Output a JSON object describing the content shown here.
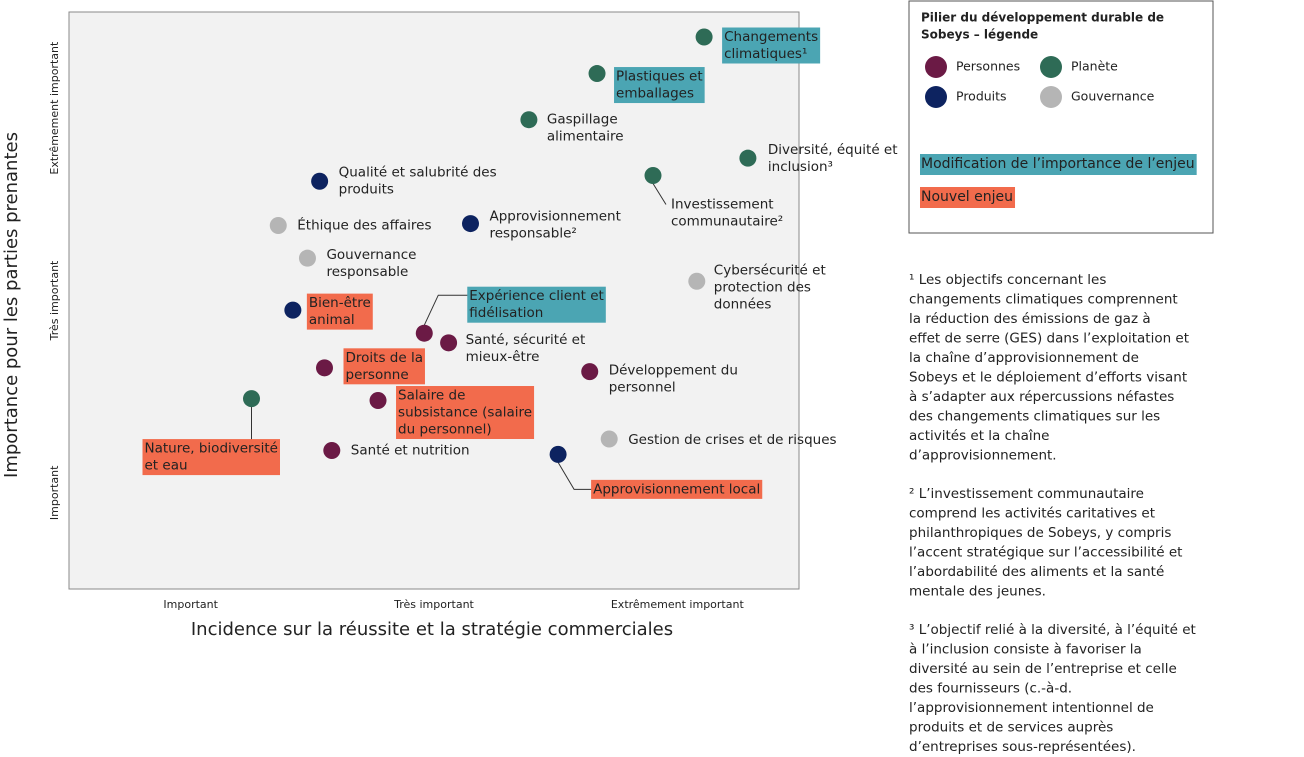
{
  "chart_data": {
    "type": "scatter",
    "x_label": "Incidence sur la réussite et la stratégie commerciales",
    "y_label": "Importance pour les parties prenantes",
    "xlim": [
      0,
      3
    ],
    "ylim": [
      0,
      3
    ],
    "xticks": [
      {
        "value": 0.5,
        "label": "Important"
      },
      {
        "value": 1.5,
        "label": "Très important"
      },
      {
        "value": 2.5,
        "label": "Extrêmement important"
      }
    ],
    "yticks": [
      {
        "value": 0.5,
        "label": "Important"
      },
      {
        "value": 1.5,
        "label": "Très important"
      },
      {
        "value": 2.5,
        "label": "Extrêmement important"
      }
    ],
    "legend_title": [
      "Pilier du développement durable de",
      "Sobeys – légende"
    ],
    "highlights": [
      {
        "label": "Modification de l’importance de l’enjeu",
        "color": "#4ba5b3"
      },
      {
        "label": "Nouvel enjeu",
        "color": "#f26b4c"
      }
    ],
    "series": [
      {
        "name": "Personnes",
        "color": "#6b1a45",
        "x": [
          1.46,
          1.56,
          1.05,
          2.14,
          1.27,
          1.08
        ],
        "values": [
          1.33,
          1.28,
          1.15,
          1.13,
          0.98,
          0.72
        ],
        "labels": [
          [
            "Expérience client et",
            "fidélisation"
          ],
          [
            "Santé, sécurité et",
            "mieux-être"
          ],
          [
            "Droits de la",
            "personne"
          ],
          [
            "Développement du",
            "personnel"
          ],
          [
            "Salaire de",
            "subsistance (salaire",
            "du personnel)"
          ],
          [
            "Santé et nutrition"
          ]
        ],
        "highlight": [
          "#4ba5b3",
          null,
          "#f26b4c",
          null,
          "#f26b4c",
          null
        ]
      },
      {
        "name": "Planète",
        "color": "#2e6b56",
        "x": [
          2.61,
          2.17,
          1.89,
          2.79,
          2.4,
          0.75
        ],
        "values": [
          2.87,
          2.68,
          2.44,
          2.24,
          2.15,
          0.99
        ],
        "labels": [
          [
            "Changements",
            "climatiques¹"
          ],
          [
            "Plastiques et",
            "emballages"
          ],
          [
            "Gaspillage",
            "alimentaire"
          ],
          [
            "Diversité, équité et",
            "inclusion³"
          ],
          [
            "Investissement",
            "communautaire²"
          ],
          [
            "Nature, biodiversité",
            "et eau"
          ]
        ],
        "highlight": [
          "#4ba5b3",
          "#4ba5b3",
          null,
          null,
          null,
          "#f26b4c"
        ]
      },
      {
        "name": "Produits",
        "color": "#0d2360",
        "x": [
          1.03,
          1.65,
          0.92,
          2.01
        ],
        "values": [
          2.12,
          1.9,
          1.45,
          0.7
        ],
        "labels": [
          [
            "Qualité et salubrité des",
            "produits"
          ],
          [
            "Approvisionnement",
            "responsable²"
          ],
          [
            "Bien-être",
            "animal"
          ],
          [
            "Approvisionnement local"
          ]
        ],
        "highlight": [
          null,
          null,
          "#f26b4c",
          "#f26b4c"
        ]
      },
      {
        "name": "Gouvernance",
        "color": "#b5b5b5",
        "x": [
          0.86,
          0.98,
          2.58,
          2.22
        ],
        "values": [
          1.89,
          1.72,
          1.6,
          0.78
        ],
        "labels": [
          [
            "Éthique des affaires"
          ],
          [
            "Gouvernance",
            "responsable"
          ],
          [
            "Cybersécurité et",
            "protection des",
            "données"
          ],
          [
            "Gestion de crises et de risques"
          ]
        ],
        "highlight": [
          null,
          null,
          null,
          null
        ]
      }
    ]
  },
  "footnotes": [
    [
      "¹ Les objectifs concernant les",
      "changements climatiques comprennent",
      "la réduction des émissions de gaz à",
      "effet de serre (GES) dans l’exploitation et",
      "la chaîne d’approvisionnement de",
      "Sobeys et le déploiement d’efforts visant",
      "à s’adapter aux répercussions néfastes",
      "des changements climatiques sur les",
      "activités et la chaîne",
      "d’approvisionnement."
    ],
    [
      "² L’investissement communautaire",
      "comprend les activités caritatives et",
      "philanthropiques de Sobeys, y compris",
      "l’accent stratégique sur l’accessibilité et",
      "l’abordabilité des aliments et la santé",
      "mentale des jeunes."
    ],
    [
      "³ L’objectif relié à la diversité, à l’équité et",
      "à l’inclusion consiste à favoriser la",
      "diversité au sein de l’entreprise et celle",
      "des fournisseurs (c.-à-d.",
      "l’approvisionnement intentionnel de",
      "produits et de services auprès",
      "d’entreprises sous-représentées)."
    ]
  ]
}
